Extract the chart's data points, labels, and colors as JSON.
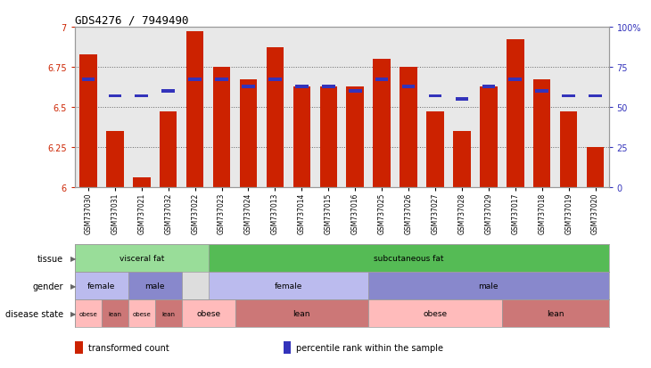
{
  "title": "GDS4276 / 7949490",
  "samples": [
    "GSM737030",
    "GSM737031",
    "GSM737021",
    "GSM737032",
    "GSM737022",
    "GSM737023",
    "GSM737024",
    "GSM737013",
    "GSM737014",
    "GSM737015",
    "GSM737016",
    "GSM737025",
    "GSM737026",
    "GSM737027",
    "GSM737028",
    "GSM737029",
    "GSM737017",
    "GSM737018",
    "GSM737019",
    "GSM737020"
  ],
  "bar_values": [
    6.83,
    6.35,
    6.06,
    6.47,
    6.97,
    6.75,
    6.67,
    6.87,
    6.63,
    6.63,
    6.63,
    6.8,
    6.75,
    6.47,
    6.35,
    6.63,
    6.92,
    6.67,
    6.47,
    6.25
  ],
  "blue_values": [
    6.67,
    6.57,
    6.57,
    6.6,
    6.67,
    6.67,
    6.63,
    6.67,
    6.63,
    6.63,
    6.6,
    6.67,
    6.63,
    6.57,
    6.55,
    6.63,
    6.67,
    6.6,
    6.57,
    6.57
  ],
  "ylim_left": [
    6.0,
    7.0
  ],
  "ylim_right": [
    0,
    100
  ],
  "yticks_left": [
    6.0,
    6.25,
    6.5,
    6.75,
    7.0
  ],
  "yticks_right": [
    0,
    25,
    50,
    75,
    100
  ],
  "ytick_labels_left": [
    "6",
    "6.25",
    "6.5",
    "6.75",
    "7"
  ],
  "ytick_labels_right": [
    "0",
    "25",
    "50",
    "75",
    "100%"
  ],
  "bar_color": "#CC2200",
  "blue_color": "#3333BB",
  "grid_color": "#666666",
  "bg_color": "#FFFFFF",
  "axis_bg": "#E8E8E8",
  "tissue_data": [
    {
      "label": "visceral fat",
      "start": 0,
      "end": 4,
      "color": "#99DD99"
    },
    {
      "label": "subcutaneous fat",
      "start": 5,
      "end": 19,
      "color": "#55BB55"
    }
  ],
  "gender_data": [
    {
      "label": "female",
      "start": 0,
      "end": 1,
      "color": "#BBBBEE"
    },
    {
      "label": "male",
      "start": 2,
      "end": 3,
      "color": "#8888CC"
    },
    {
      "label": "female",
      "start": 5,
      "end": 10,
      "color": "#BBBBEE"
    },
    {
      "label": "male",
      "start": 11,
      "end": 19,
      "color": "#8888CC"
    }
  ],
  "disease_data": [
    {
      "label": "obese",
      "start": 0,
      "end": 0,
      "color": "#FFBBBB"
    },
    {
      "label": "lean",
      "start": 1,
      "end": 1,
      "color": "#CC7777"
    },
    {
      "label": "obese",
      "start": 2,
      "end": 2,
      "color": "#FFBBBB"
    },
    {
      "label": "lean",
      "start": 3,
      "end": 3,
      "color": "#CC7777"
    },
    {
      "label": "obese",
      "start": 4,
      "end": 5,
      "color": "#FFBBBB"
    },
    {
      "label": "lean",
      "start": 6,
      "end": 10,
      "color": "#CC7777"
    },
    {
      "label": "obese",
      "start": 11,
      "end": 15,
      "color": "#FFBBBB"
    },
    {
      "label": "lean",
      "start": 16,
      "end": 19,
      "color": "#CC7777"
    }
  ],
  "row_labels": [
    "tissue",
    "gender",
    "disease state"
  ],
  "legend_items": [
    {
      "label": "transformed count",
      "color": "#CC2200"
    },
    {
      "label": "percentile rank within the sample",
      "color": "#3333BB"
    }
  ]
}
